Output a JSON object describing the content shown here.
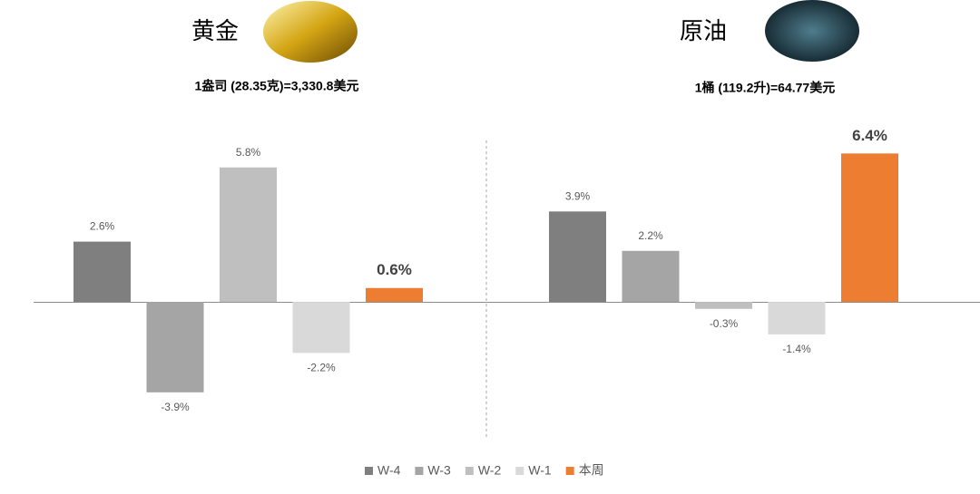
{
  "chart_data": [
    {
      "type": "bar",
      "title": "黄金",
      "subtitle": "1盎司 (28.35克)=3,330.8美元",
      "categories": [
        "W-4",
        "W-3",
        "W-2",
        "W-1",
        "本周"
      ],
      "values": [
        2.6,
        -3.9,
        5.8,
        -2.2,
        0.6
      ],
      "value_labels": [
        "2.6%",
        "-3.9%",
        "5.8%",
        "-2.2%",
        "0.6%"
      ],
      "colors": [
        "#7f7f7f",
        "#a5a5a5",
        "#bfbfbf",
        "#d9d9d9",
        "#ed7d31"
      ],
      "ylim": [
        -5,
        7
      ]
    },
    {
      "type": "bar",
      "title": "原油",
      "subtitle": "1桶 (119.2升)=64.77美元",
      "values": [
        3.9,
        2.2,
        -0.3,
        -1.4,
        6.4
      ],
      "value_labels": [
        "3.9%",
        "2.2%",
        "-0.3%",
        "-1.4%",
        "6.4%"
      ],
      "colors": [
        "#7f7f7f",
        "#a5a5a5",
        "#bfbfbf",
        "#d9d9d9",
        "#ed7d31"
      ],
      "ylim": [
        -5,
        7
      ]
    }
  ]
}
